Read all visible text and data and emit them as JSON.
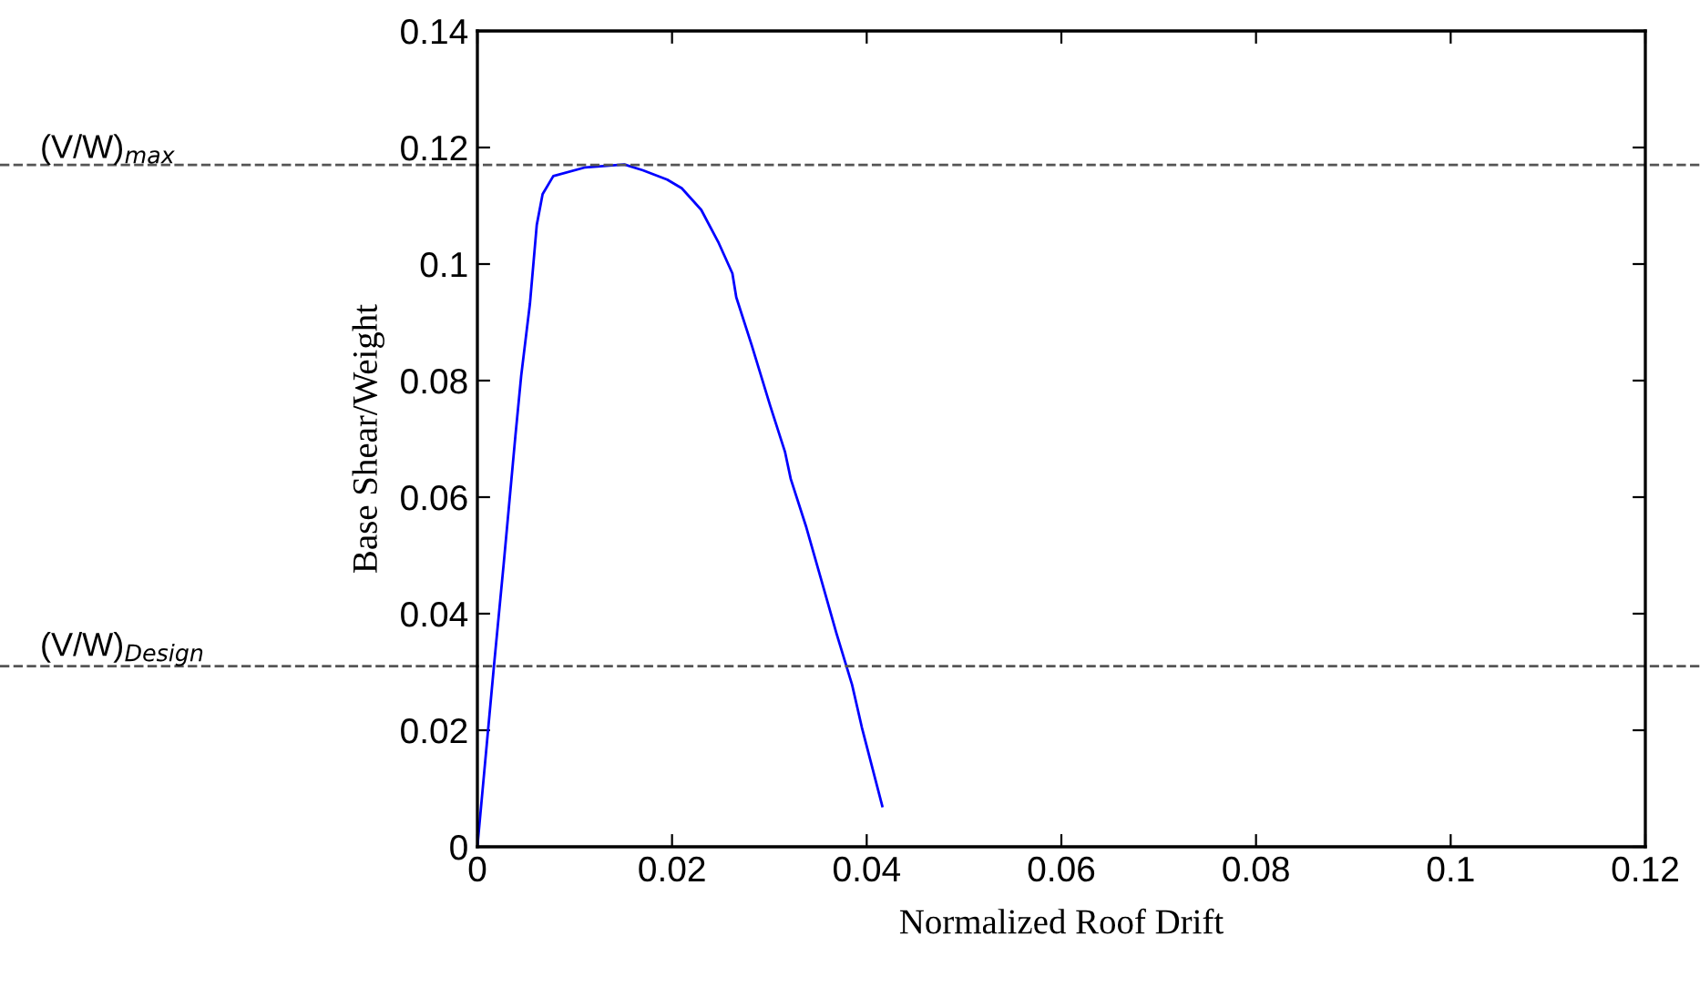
{
  "chart_data": {
    "type": "line",
    "xlabel": "Normalized Roof Drift",
    "ylabel": "Base Shear/Weight",
    "x": [
      0,
      0.0017,
      0.0027,
      0.0039,
      0.0045,
      0.0054,
      0.0061,
      0.0067,
      0.0078,
      0.0111,
      0.0151,
      0.017,
      0.0195,
      0.021,
      0.023,
      0.0248,
      0.0262,
      0.0266,
      0.0282,
      0.0301,
      0.0316,
      0.0322,
      0.0338,
      0.0354,
      0.0369,
      0.0385,
      0.0395,
      0.0416
    ],
    "series": [
      {
        "color": "#0000ff",
        "values": [
          0,
          0.031,
          0.0485,
          0.0704,
          0.0808,
          0.0932,
          0.1067,
          0.112,
          0.1151,
          0.1166,
          0.1171,
          0.1161,
          0.1145,
          0.113,
          0.1093,
          0.1036,
          0.0984,
          0.0943,
          0.086,
          0.0756,
          0.0678,
          0.0631,
          0.0548,
          0.0454,
          0.0366,
          0.0278,
          0.0205,
          0.007
        ]
      }
    ],
    "xlim": [
      0,
      0.12
    ],
    "xticks": [
      0,
      0.02,
      0.04,
      0.06,
      0.08,
      0.1,
      0.12
    ],
    "ylim": [
      0,
      0.14
    ],
    "yticks": [
      0,
      0.02,
      0.04,
      0.06,
      0.08,
      0.1,
      0.12,
      0.14
    ],
    "ref_lines": [
      {
        "axis": "y",
        "value": 0.117,
        "label": "(V/W)$_{max}$",
        "color": "#555555",
        "line_style": "dashed"
      },
      {
        "axis": "y",
        "value": 0.031,
        "label": "(V/W)$_{Design}$",
        "color": "#555555",
        "line_style": "dashed"
      }
    ],
    "grid": false,
    "legend": false,
    "marker": "none",
    "line_style": "solid"
  }
}
